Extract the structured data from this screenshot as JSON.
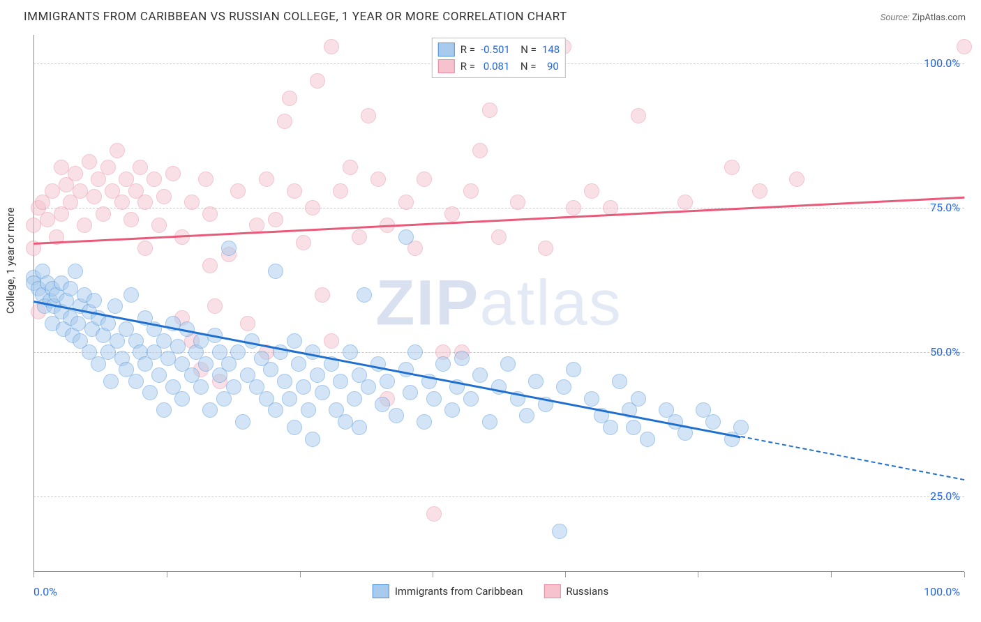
{
  "title": "IMMIGRANTS FROM CARIBBEAN VS RUSSIAN COLLEGE, 1 YEAR OR MORE CORRELATION CHART",
  "source_label": "Source:",
  "source_value": "ZipAtlas.com",
  "watermark": "ZIPatlas",
  "chart": {
    "type": "scatter",
    "ylabel": "College, 1 year or more",
    "xlim": [
      0,
      100
    ],
    "ylim": [
      12,
      105
    ],
    "x_axis_min_label": "0.0%",
    "x_axis_max_label": "100.0%",
    "ytick_labels": [
      "25.0%",
      "50.0%",
      "75.0%",
      "100.0%"
    ],
    "ytick_values": [
      25,
      50,
      75,
      100
    ],
    "xtick_values": [
      0,
      14.3,
      28.6,
      42.9,
      57.1,
      71.4,
      85.7,
      100
    ],
    "grid_color": "#cccccc",
    "axis_color": "#888888",
    "background_color": "#ffffff",
    "point_radius": 11,
    "point_opacity": 0.5,
    "series": [
      {
        "name": "Immigrants from Caribbean",
        "fill_color": "#a7caed",
        "stroke_color": "#4a90d9",
        "trend_color": "#1f6fd0",
        "R": "-0.501",
        "N": "148",
        "trend": {
          "x1": 0,
          "y1": 59,
          "x2": 76,
          "y2": 35.5,
          "dash_to_x": 100,
          "dash_to_y": 28
        },
        "points": [
          [
            0,
            63
          ],
          [
            0,
            62
          ],
          [
            0.5,
            61
          ],
          [
            1,
            64
          ],
          [
            1,
            60
          ],
          [
            1.2,
            58
          ],
          [
            1.5,
            62
          ],
          [
            1.8,
            59
          ],
          [
            2,
            61
          ],
          [
            2,
            55
          ],
          [
            2.2,
            58
          ],
          [
            2.5,
            60
          ],
          [
            3,
            57
          ],
          [
            3,
            62
          ],
          [
            3.2,
            54
          ],
          [
            3.5,
            59
          ],
          [
            4,
            56
          ],
          [
            4,
            61
          ],
          [
            4.2,
            53
          ],
          [
            4.5,
            64
          ],
          [
            4.8,
            55
          ],
          [
            5,
            58
          ],
          [
            5,
            52
          ],
          [
            5.5,
            60
          ],
          [
            6,
            57
          ],
          [
            6,
            50
          ],
          [
            6.3,
            54
          ],
          [
            6.5,
            59
          ],
          [
            7,
            56
          ],
          [
            7,
            48
          ],
          [
            7.5,
            53
          ],
          [
            8,
            55
          ],
          [
            8,
            50
          ],
          [
            8.3,
            45
          ],
          [
            8.8,
            58
          ],
          [
            9,
            52
          ],
          [
            9.5,
            49
          ],
          [
            10,
            54
          ],
          [
            10,
            47
          ],
          [
            10.5,
            60
          ],
          [
            11,
            45
          ],
          [
            11,
            52
          ],
          [
            11.5,
            50
          ],
          [
            12,
            56
          ],
          [
            12,
            48
          ],
          [
            12.5,
            43
          ],
          [
            13,
            50
          ],
          [
            13,
            54
          ],
          [
            13.5,
            46
          ],
          [
            14,
            52
          ],
          [
            14,
            40
          ],
          [
            14.5,
            49
          ],
          [
            15,
            55
          ],
          [
            15,
            44
          ],
          [
            15.5,
            51
          ],
          [
            16,
            48
          ],
          [
            16,
            42
          ],
          [
            16.5,
            54
          ],
          [
            17,
            46
          ],
          [
            17.5,
            50
          ],
          [
            18,
            44
          ],
          [
            18,
            52
          ],
          [
            18.5,
            48
          ],
          [
            19,
            40
          ],
          [
            19.5,
            53
          ],
          [
            20,
            46
          ],
          [
            20,
            50
          ],
          [
            20.5,
            42
          ],
          [
            21,
            68
          ],
          [
            21,
            48
          ],
          [
            21.5,
            44
          ],
          [
            22,
            50
          ],
          [
            22.5,
            38
          ],
          [
            23,
            46
          ],
          [
            23.5,
            52
          ],
          [
            24,
            44
          ],
          [
            24.5,
            49
          ],
          [
            25,
            42
          ],
          [
            25.5,
            47
          ],
          [
            26,
            40
          ],
          [
            26,
            64
          ],
          [
            26.5,
            50
          ],
          [
            27,
            45
          ],
          [
            27.5,
            42
          ],
          [
            28,
            52
          ],
          [
            28,
            37
          ],
          [
            28.5,
            48
          ],
          [
            29,
            44
          ],
          [
            29.5,
            40
          ],
          [
            30,
            50
          ],
          [
            30,
            35
          ],
          [
            30.5,
            46
          ],
          [
            31,
            43
          ],
          [
            32,
            48
          ],
          [
            32.5,
            40
          ],
          [
            33,
            45
          ],
          [
            33.5,
            38
          ],
          [
            34,
            50
          ],
          [
            34.5,
            42
          ],
          [
            35,
            46
          ],
          [
            35,
            37
          ],
          [
            35.5,
            60
          ],
          [
            36,
            44
          ],
          [
            37,
            48
          ],
          [
            37.5,
            41
          ],
          [
            38,
            45
          ],
          [
            39,
            39
          ],
          [
            40,
            47
          ],
          [
            40,
            70
          ],
          [
            40.5,
            43
          ],
          [
            41,
            50
          ],
          [
            42,
            38
          ],
          [
            42.5,
            45
          ],
          [
            43,
            42
          ],
          [
            44,
            48
          ],
          [
            45,
            40
          ],
          [
            45.5,
            44
          ],
          [
            46,
            49
          ],
          [
            47,
            42
          ],
          [
            48,
            46
          ],
          [
            49,
            38
          ],
          [
            50,
            44
          ],
          [
            51,
            48
          ],
          [
            52,
            42
          ],
          [
            53,
            39
          ],
          [
            54,
            45
          ],
          [
            55,
            41
          ],
          [
            56.5,
            19
          ],
          [
            57,
            44
          ],
          [
            58,
            47
          ],
          [
            60,
            42
          ],
          [
            61,
            39
          ],
          [
            62,
            37
          ],
          [
            63,
            45
          ],
          [
            64,
            40
          ],
          [
            64.5,
            37
          ],
          [
            65,
            42
          ],
          [
            66,
            35
          ],
          [
            68,
            40
          ],
          [
            69,
            38
          ],
          [
            70,
            36
          ],
          [
            72,
            40
          ],
          [
            73,
            38
          ],
          [
            75,
            35
          ],
          [
            76,
            37
          ]
        ]
      },
      {
        "name": "Russians",
        "fill_color": "#f5c2ce",
        "stroke_color": "#e8899f",
        "trend_color": "#e85a7a",
        "R": "0.081",
        "N": "90",
        "trend": {
          "x1": 0,
          "y1": 69,
          "x2": 100,
          "y2": 77
        },
        "points": [
          [
            0,
            68
          ],
          [
            0,
            72
          ],
          [
            0.5,
            75
          ],
          [
            0.5,
            57
          ],
          [
            1,
            76
          ],
          [
            1.5,
            73
          ],
          [
            2,
            78
          ],
          [
            2.5,
            70
          ],
          [
            3,
            82
          ],
          [
            3,
            74
          ],
          [
            3.5,
            79
          ],
          [
            4,
            76
          ],
          [
            4.5,
            81
          ],
          [
            5,
            78
          ],
          [
            5.5,
            72
          ],
          [
            6,
            83
          ],
          [
            6.5,
            77
          ],
          [
            7,
            80
          ],
          [
            7.5,
            74
          ],
          [
            8,
            82
          ],
          [
            8.5,
            78
          ],
          [
            9,
            85
          ],
          [
            9.5,
            76
          ],
          [
            10,
            80
          ],
          [
            10.5,
            73
          ],
          [
            11,
            78
          ],
          [
            11.5,
            82
          ],
          [
            12,
            68
          ],
          [
            12,
            76
          ],
          [
            13,
            80
          ],
          [
            13.5,
            72
          ],
          [
            14,
            77
          ],
          [
            15,
            81
          ],
          [
            16,
            70
          ],
          [
            16,
            56
          ],
          [
            17,
            52
          ],
          [
            17,
            76
          ],
          [
            18,
            47
          ],
          [
            18.5,
            80
          ],
          [
            19,
            74
          ],
          [
            19,
            65
          ],
          [
            19.5,
            58
          ],
          [
            20,
            45
          ],
          [
            21,
            67
          ],
          [
            22,
            78
          ],
          [
            23,
            55
          ],
          [
            24,
            72
          ],
          [
            25,
            50
          ],
          [
            25,
            80
          ],
          [
            26,
            73
          ],
          [
            27,
            90
          ],
          [
            27.5,
            94
          ],
          [
            28,
            78
          ],
          [
            29,
            69
          ],
          [
            30,
            75
          ],
          [
            30.5,
            97
          ],
          [
            31,
            60
          ],
          [
            32,
            52
          ],
          [
            32,
            103
          ],
          [
            33,
            78
          ],
          [
            34,
            82
          ],
          [
            35,
            70
          ],
          [
            36,
            91
          ],
          [
            37,
            80
          ],
          [
            38,
            72
          ],
          [
            38,
            42
          ],
          [
            40,
            76
          ],
          [
            41,
            68
          ],
          [
            42,
            80
          ],
          [
            43,
            22
          ],
          [
            44,
            50
          ],
          [
            45,
            74
          ],
          [
            46,
            50
          ],
          [
            47,
            78
          ],
          [
            48,
            85
          ],
          [
            49,
            92
          ],
          [
            50,
            70
          ],
          [
            52,
            76
          ],
          [
            55,
            68
          ],
          [
            57,
            103
          ],
          [
            58,
            75
          ],
          [
            60,
            78
          ],
          [
            62,
            75
          ],
          [
            65,
            91
          ],
          [
            70,
            76
          ],
          [
            75,
            82
          ],
          [
            78,
            78
          ],
          [
            82,
            80
          ],
          [
            100,
            103
          ]
        ]
      }
    ]
  },
  "legend_bottom": {
    "items": [
      {
        "label": "Immigrants from Caribbean",
        "fill": "#a7caed",
        "stroke": "#4a90d9"
      },
      {
        "label": "Russians",
        "fill": "#f5c2ce",
        "stroke": "#e8899f"
      }
    ]
  }
}
